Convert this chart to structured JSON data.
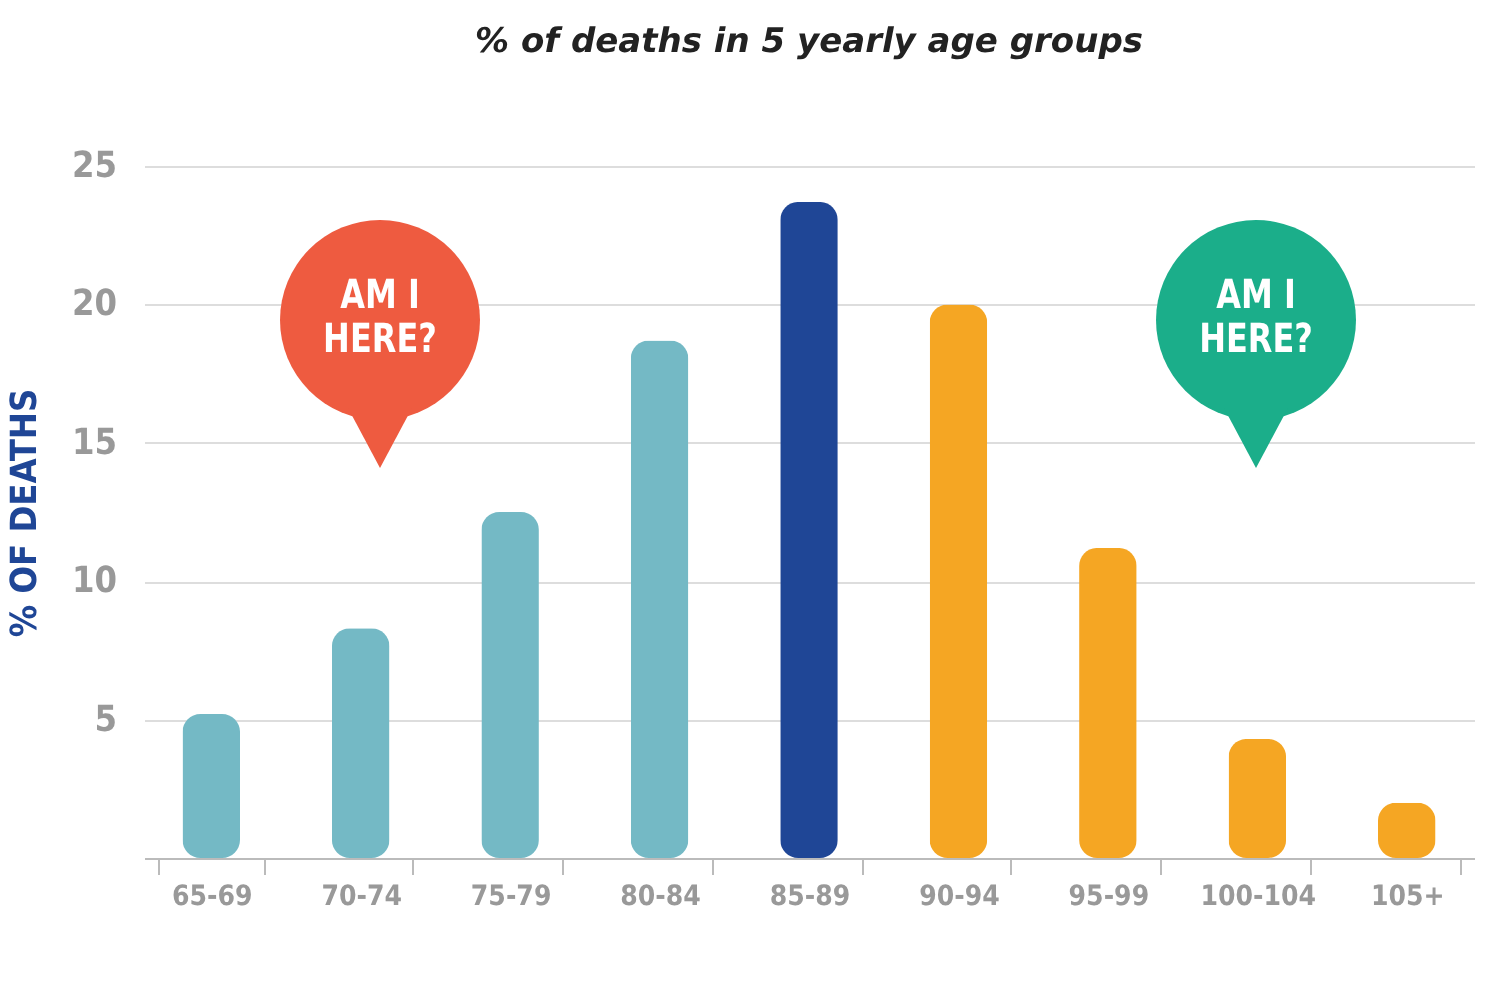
{
  "chart_data": {
    "type": "bar",
    "title": "% of deaths in 5 yearly age groups",
    "ylabel": "% OF DEATHS",
    "categories": [
      "65-69",
      "70-74",
      "75-79",
      "80-84",
      "85-89",
      "90-94",
      "95-99",
      "100-104",
      "105+"
    ],
    "values": [
      5.2,
      8.3,
      12.5,
      18.7,
      23.7,
      20.0,
      11.2,
      4.3,
      2.0
    ],
    "colors": [
      "#74b9c5",
      "#74b9c5",
      "#74b9c5",
      "#74b9c5",
      "#1f4696",
      "#f5a623",
      "#f5a623",
      "#f5a623",
      "#f5a623"
    ],
    "ylim": [
      0,
      25
    ],
    "yticks": [
      5,
      10,
      15,
      20,
      25
    ],
    "grid": "y",
    "legend": false,
    "annotations": [
      "AM I HERE?",
      "AM I HERE?"
    ]
  }
}
